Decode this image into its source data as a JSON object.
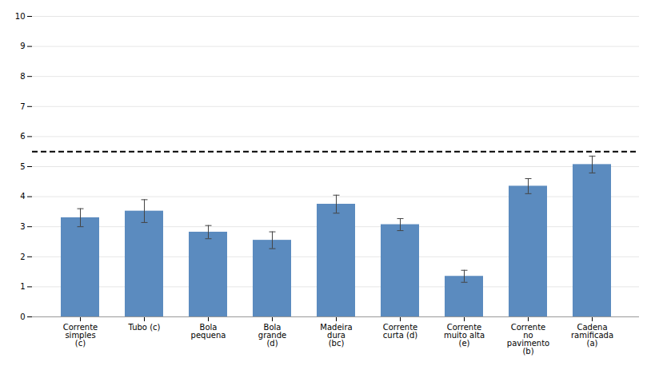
{
  "chart_data": {
    "type": "bar",
    "categories": [
      "Corrente\nsimples\n(c)",
      "Tubo (c)",
      "Bola\npequena",
      "Bola\ngrande\n(d)",
      "Madeira\ndura\n(bc)",
      "Corrente\ncurta (d)",
      "Corrente\nmuito alta\n(e)",
      "Corrente\nno\npavimento\n(b)",
      "Cadena\nramificada\n(a)"
    ],
    "values": [
      3.3,
      3.52,
      2.82,
      2.55,
      3.75,
      3.07,
      1.35,
      4.35,
      5.07
    ],
    "errors": [
      0.3,
      0.38,
      0.22,
      0.28,
      0.3,
      0.2,
      0.2,
      0.25,
      0.28
    ],
    "color": "#5b8bbf",
    "reference_line": {
      "y": 5.5,
      "line_style": "dashed",
      "color": "#000000"
    },
    "ylim": [
      0,
      10
    ],
    "yticks": [
      0,
      1,
      2,
      3,
      4,
      5,
      6,
      7,
      8,
      9,
      10
    ],
    "grid": true
  }
}
